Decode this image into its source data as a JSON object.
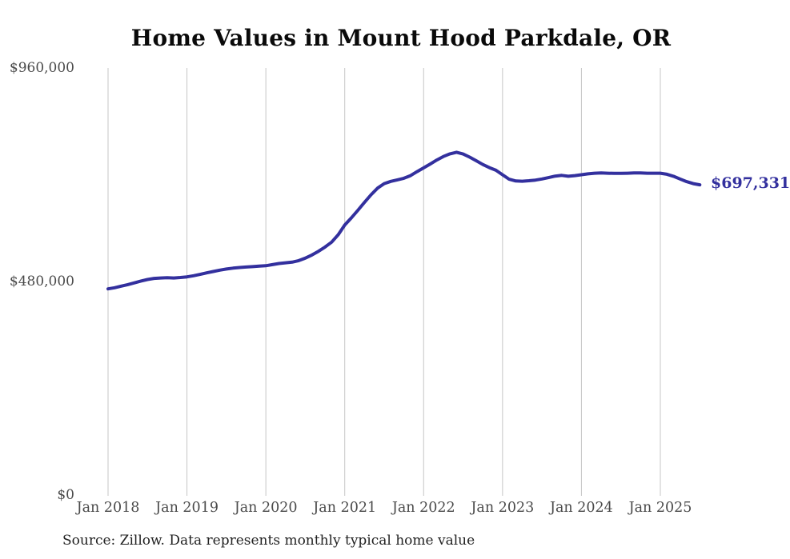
{
  "colors": {
    "background": "#ffffff",
    "line": "#33309e",
    "end_label": "#33309e",
    "grid": "#c6c6c6",
    "tick_text": "#4a4a4a",
    "title_text": "#0a0a0a",
    "source_text": "#222222"
  },
  "source_note": "Source: Zillow. Data represents monthly typical home value",
  "chart_data": {
    "type": "line",
    "title": "Home Values in Mount Hood Parkdale, OR",
    "xlabel": "",
    "ylabel": "",
    "legend": "none",
    "grid": "vertical-only",
    "ylim": [
      0,
      960000
    ],
    "end_label": "$697,331",
    "end_value": 697331,
    "y_ticks": [
      {
        "label": "$0",
        "value": 0
      },
      {
        "label": "$480,000",
        "value": 480000
      },
      {
        "label": "$960,000",
        "value": 960000
      }
    ],
    "x_tick_labels": [
      "Jan 2018",
      "Jan 2019",
      "Jan 2020",
      "Jan 2021",
      "Jan 2022",
      "Jan 2023",
      "Jan 2024",
      "Jan 2025"
    ],
    "series": [
      {
        "name": "Typical home value (USD)",
        "start_month": "2018-01",
        "end_month": "2025-07",
        "interval": "monthly",
        "values": [
          463500,
          466000,
          469500,
          473000,
          477000,
          481000,
          484500,
          487000,
          488000,
          488500,
          488000,
          489000,
          490500,
          493000,
          496000,
          499500,
          502500,
          505500,
          508000,
          510000,
          511500,
          512500,
          513500,
          514500,
          515500,
          518000,
          520500,
          522000,
          523500,
          527000,
          532500,
          539500,
          548000,
          557500,
          568500,
          585000,
          607000,
          623000,
          640000,
          658000,
          675000,
          690000,
          700000,
          705000,
          708500,
          712000,
          718000,
          727000,
          735500,
          744000,
          753000,
          761000,
          767000,
          770500,
          766500,
          759500,
          751500,
          743000,
          736000,
          730000,
          720000,
          710000,
          706000,
          705500,
          706500,
          708000,
          710500,
          713500,
          717000,
          718500,
          716500,
          718000,
          720000,
          722000,
          723500,
          724000,
          723500,
          723000,
          723000,
          723500,
          724000,
          724000,
          723500,
          723500,
          723500,
          721000,
          716500,
          710500,
          704500,
          700000,
          697331
        ]
      }
    ]
  }
}
